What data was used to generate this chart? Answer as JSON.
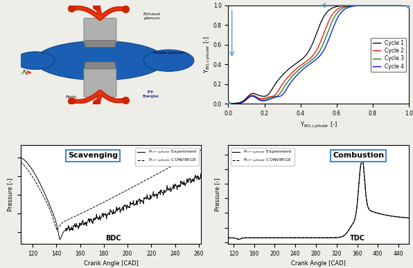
{
  "top_right": {
    "xlabel": "Y$_{BO,cylinder}$ [-]",
    "ylabel": "Y$_{BG,cylinder}$ [-]",
    "xlim": [
      0,
      1
    ],
    "ylim": [
      0,
      1
    ],
    "legend": [
      "Cycle 1",
      "Cycle 2",
      "Cycle 3",
      "Cycle 4"
    ],
    "colors": [
      "black",
      "red",
      "green",
      "blue"
    ],
    "arrow_color": "#5599cc",
    "dot_color": "#5599cc"
  },
  "bottom_left": {
    "title": "Scavenging",
    "xlabel": "Crank Angle [CAD]",
    "ylabel": "Pressure [-]",
    "xlim": [
      110,
      262
    ],
    "xticks": [
      120,
      140,
      160,
      180,
      200,
      220,
      240,
      260
    ],
    "bdc_label": "BDC",
    "legend_exp": "P$_{in-cylinder}$ Experiment",
    "legend_conv": "P$_{in-cylinder}$ CONVERGE"
  },
  "bottom_right": {
    "title": "Combustion",
    "xlabel": "Crank Angle [CAD]",
    "ylabel": "Pressure [-]",
    "xlim": [
      110,
      460
    ],
    "xticks": [
      120,
      160,
      200,
      240,
      280,
      320,
      360,
      400,
      440
    ],
    "tdc_label": "TDC",
    "legend_exp": "P$_{in-cylinder}$ Experiment",
    "legend_conv": "P$_{in-cylinder}$ CONVERGE"
  },
  "bg_color": "#eeede8"
}
